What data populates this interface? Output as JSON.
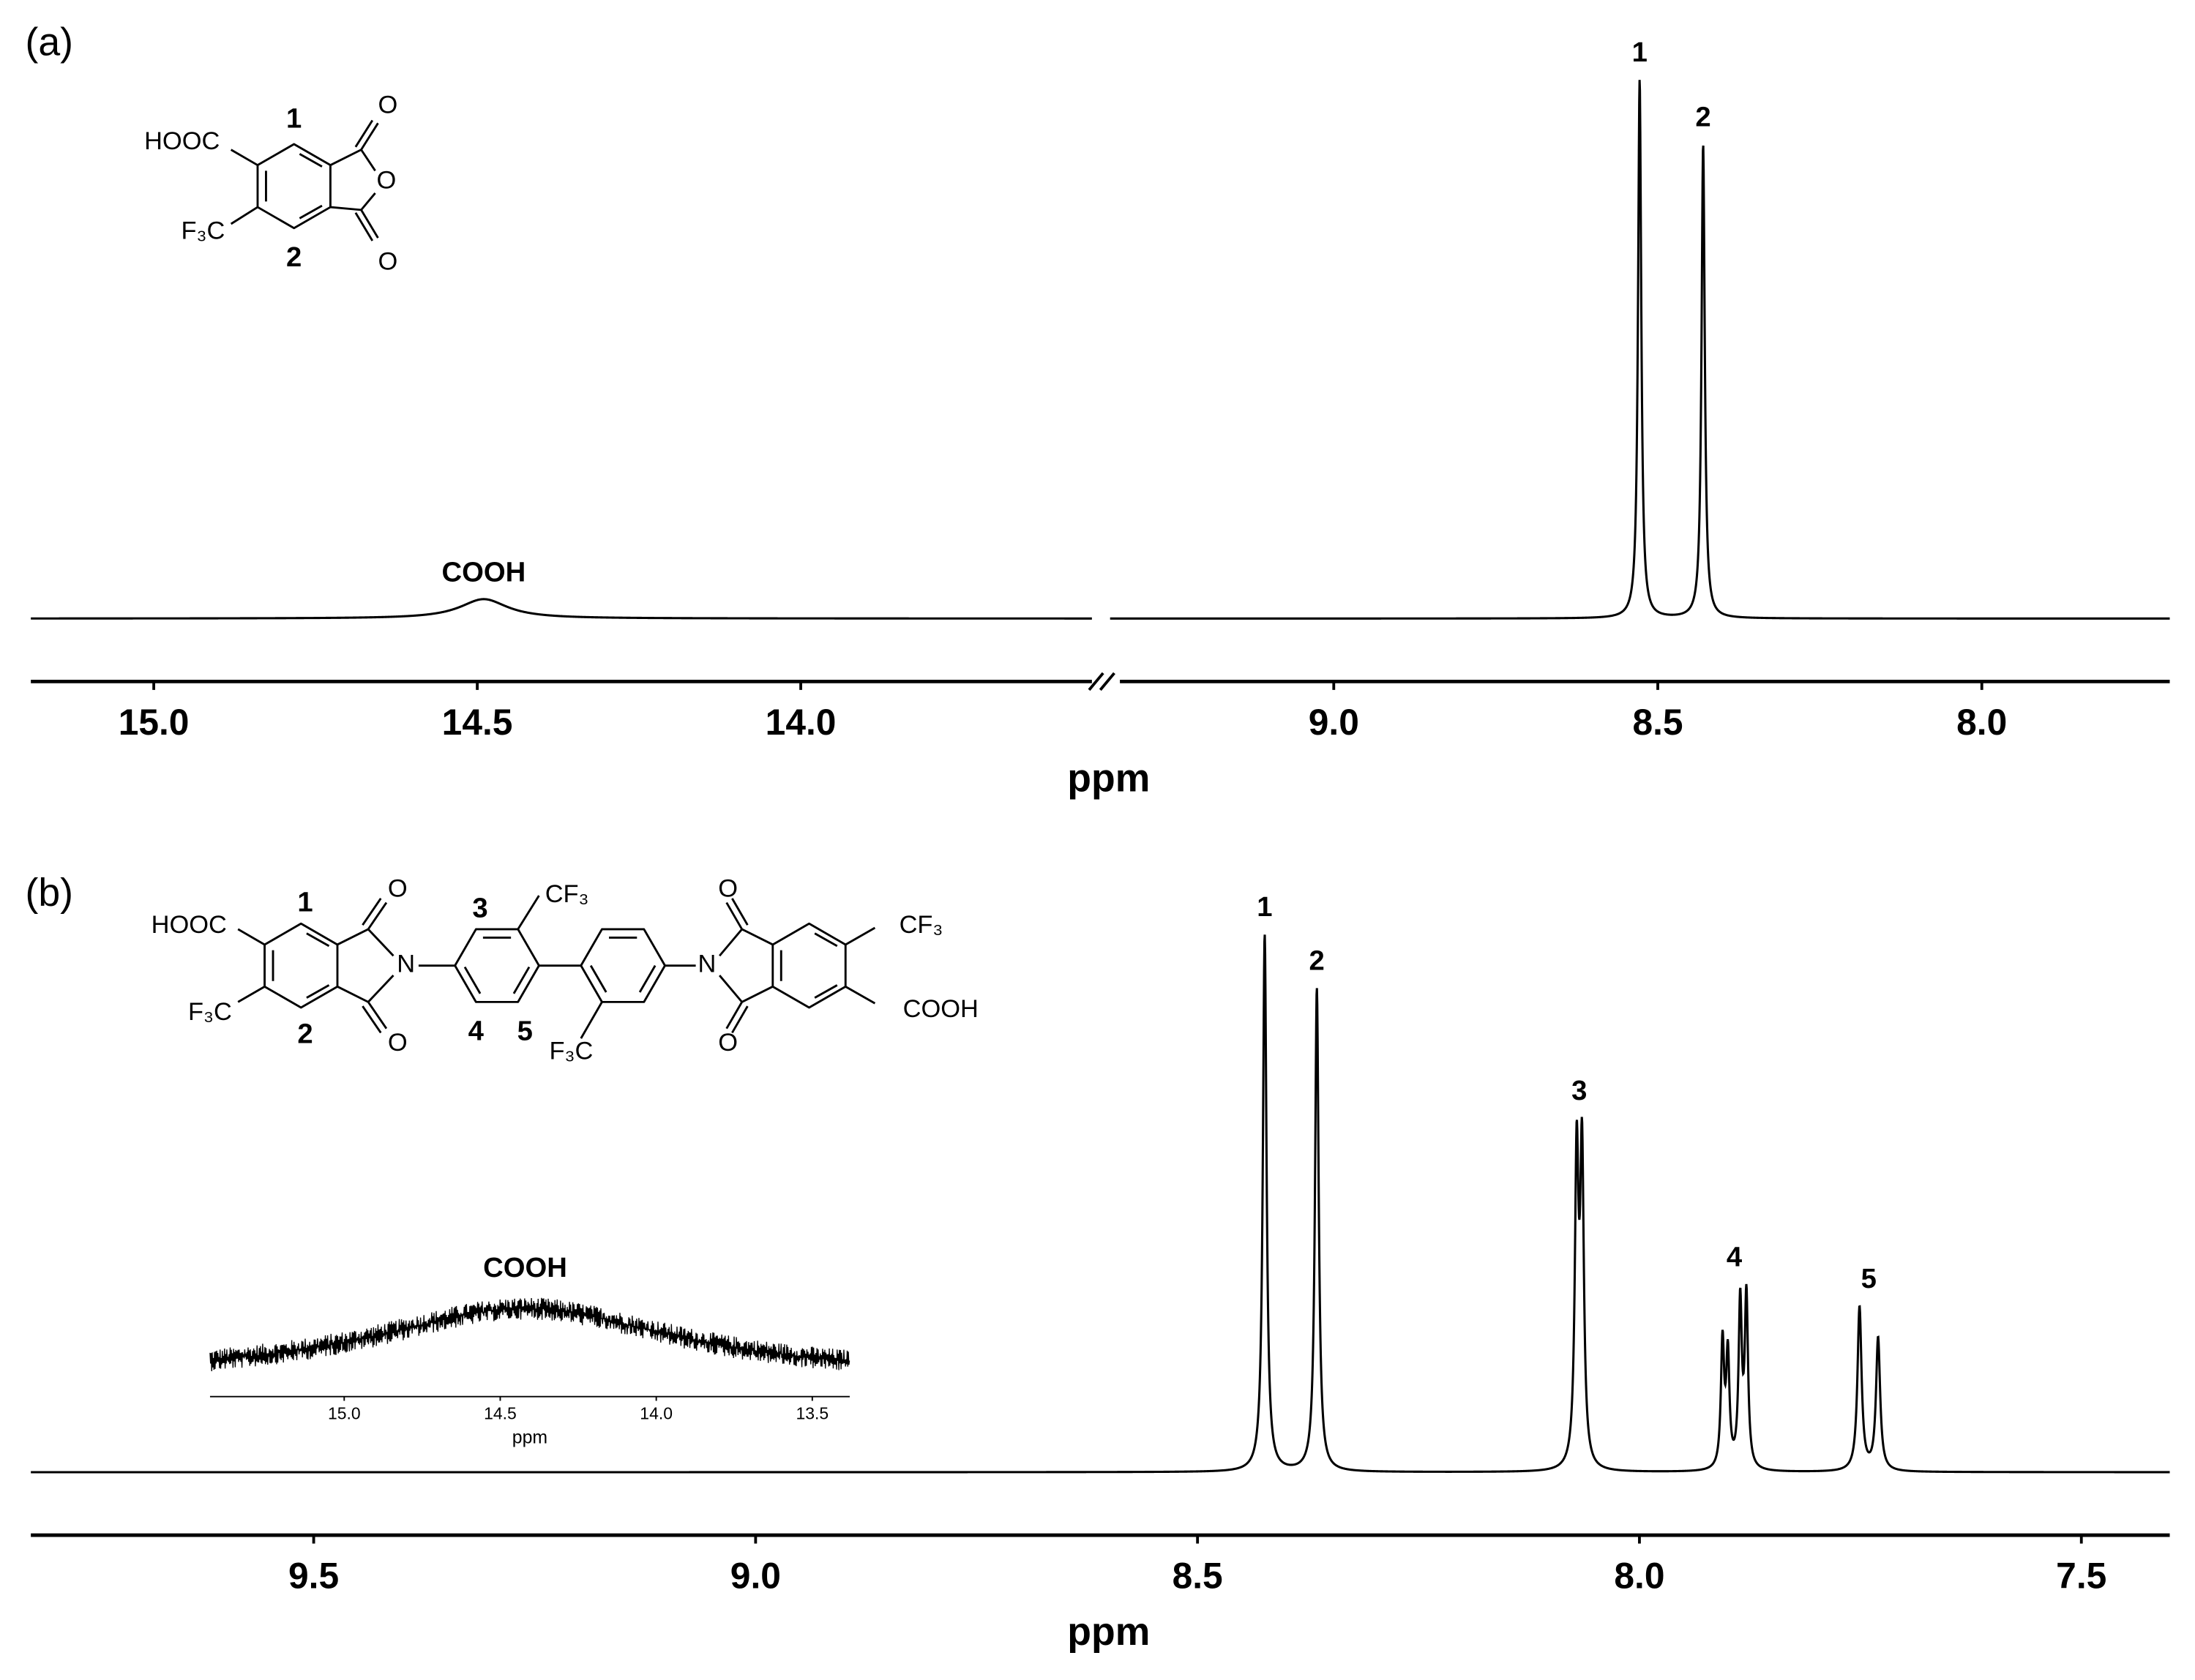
{
  "chart_data": [
    {
      "type": "nmr",
      "panel": "(a)",
      "xlabel": "ppm",
      "axis_break": true,
      "color": "#000000",
      "segments": [
        {
          "xlim": [
            15.19,
            13.55
          ],
          "xticks": [
            {
              "value": 15,
              "label": "15.0"
            },
            14.5,
            {
              "value": 14,
              "label": "14.0"
            }
          ]
        },
        {
          "xlim": [
            9.33,
            7.71
          ],
          "xticks": [
            {
              "value": 9,
              "label": "9.0"
            },
            8.5,
            {
              "value": 8,
              "label": "8.0"
            }
          ]
        }
      ],
      "signals": [
        {
          "label": "COOH",
          "width": 0.045,
          "lines": [
            {
              "ppm": 14.49,
              "height": 3.6
            }
          ]
        },
        {
          "label": "1",
          "width": 0.003,
          "lines": [
            {
              "ppm": 8.528,
              "height": 100
            }
          ]
        },
        {
          "label": "2",
          "width": 0.003,
          "lines": [
            {
              "ppm": 8.43,
              "height": 88
            }
          ]
        }
      ],
      "structure_labels": [
        "HOOC",
        "1",
        "O",
        "O",
        "O",
        "F₃C",
        "2"
      ]
    },
    {
      "type": "nmr",
      "panel": "(b)",
      "xlabel": "ppm",
      "axis_break": false,
      "color": "#000000",
      "segments": [
        {
          "xlim": [
            9.82,
            7.4
          ],
          "xticks": [
            9.5,
            {
              "value": 9,
              "label": "9.0"
            },
            8.5,
            {
              "value": 8,
              "label": "8.0"
            },
            7.5
          ]
        }
      ],
      "signals": [
        {
          "label": "1",
          "width": 0.0025,
          "lines": [
            {
              "ppm": 8.424,
              "height": 100
            }
          ]
        },
        {
          "label": "2",
          "width": 0.0025,
          "lines": [
            {
              "ppm": 8.365,
              "height": 90
            }
          ]
        },
        {
          "label": "3",
          "width": 0.0025,
          "lines": [
            {
              "ppm": 8.071,
              "height": 57
            },
            {
              "ppm": 8.065,
              "height": 57.5
            }
          ]
        },
        {
          "label": "4",
          "width": 0.0022,
          "lines": [
            {
              "ppm": 7.906,
              "height": 23.4
            },
            {
              "ppm": 7.9,
              "height": 20.8
            },
            {
              "ppm": 7.886,
              "height": 30.7
            },
            {
              "ppm": 7.879,
              "height": 31.8
            }
          ]
        },
        {
          "label": "5",
          "width": 0.0028,
          "lines": [
            {
              "ppm": 7.751,
              "height": 30.5
            },
            {
              "ppm": 7.73,
              "height": 24.7
            }
          ]
        }
      ],
      "inset": {
        "xlabel": "ppm",
        "xlim": [
          15.43,
          13.38
        ],
        "xticks": [
          {
            "value": 15,
            "label": "15.0"
          },
          14.5,
          {
            "value": 14,
            "label": "14.0"
          },
          13.5
        ],
        "signals": [
          {
            "label": "COOH",
            "width": 0.6,
            "lines": [
              {
                "ppm": 14.42,
                "height": 100
              }
            ]
          }
        ]
      },
      "structure_labels": [
        "HOOC",
        "1",
        "O",
        "N",
        "O",
        "F₃C",
        "2",
        "3",
        "CF₃",
        "4",
        "5",
        "F₃C",
        "O",
        "N",
        "O",
        "CF₃",
        "COOH"
      ]
    }
  ]
}
